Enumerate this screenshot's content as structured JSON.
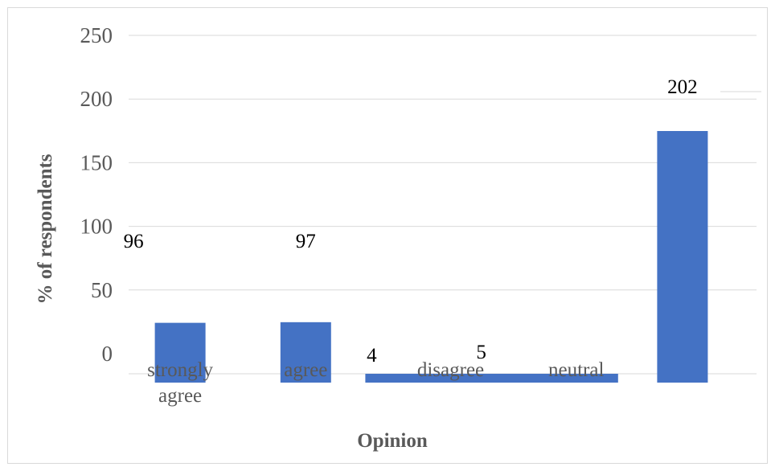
{
  "chart_data": {
    "type": "bar",
    "title": "",
    "xlabel": "Opinion",
    "ylabel": "% of respondents",
    "categories": [
      "strongly agree",
      "agree",
      "disagree",
      "neutral",
      ""
    ],
    "values": [
      96,
      97,
      4,
      5,
      202
    ],
    "ylim": [
      -50,
      250
    ],
    "yticks": [
      0,
      50,
      100,
      150,
      200,
      250
    ],
    "grid": true,
    "legend": "none",
    "bar_color": "#4472c4"
  }
}
